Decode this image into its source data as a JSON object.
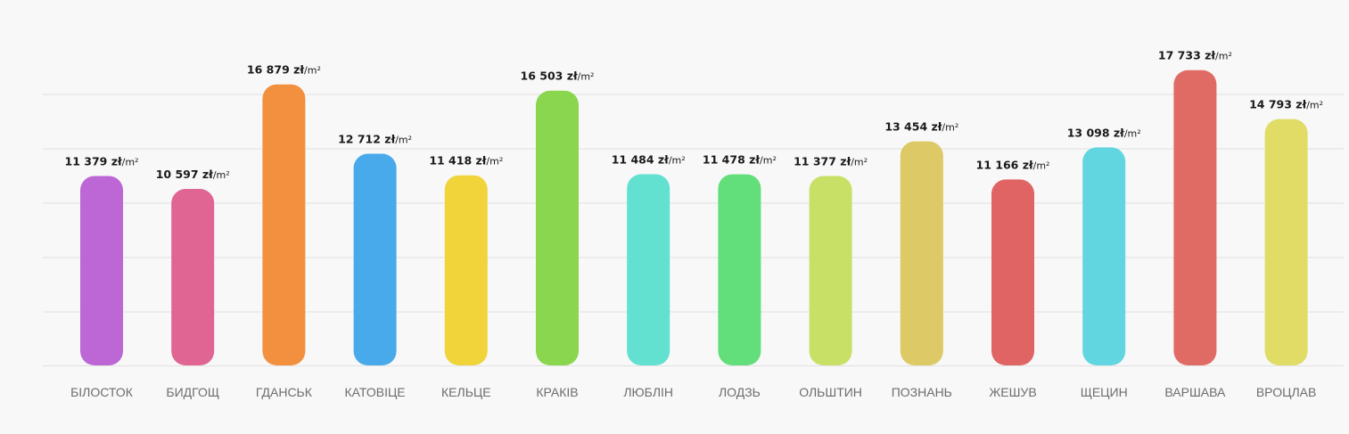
{
  "chart_data": {
    "type": "bar",
    "categories": [
      "БІЛОСТОК",
      "БИДГОЩ",
      "ГДАНСЬК",
      "КАТОВІЦЕ",
      "КЕЛЬЦЕ",
      "КРАКІВ",
      "ЛЮБЛІН",
      "ЛОДЗЬ",
      "ОЛЬШТИН",
      "ПОЗНАНЬ",
      "ЖЕШУВ",
      "ЩЕЦИН",
      "ВАРШАВА",
      "ВРОЦЛАВ"
    ],
    "values": [
      11379,
      10597,
      16879,
      12712,
      11418,
      16503,
      11484,
      11478,
      11377,
      13454,
      11166,
      13098,
      17733,
      14793
    ],
    "value_labels": [
      "11 379 zł",
      "10 597 zł",
      "16 879 zł",
      "12 712 zł",
      "11 418 zł",
      "16 503 zł",
      "11 484 zł",
      "11 478 zł",
      "11 377 zł",
      "13 454 zł",
      "11 166 zł",
      "13 098 zł",
      "17 733 zł",
      "14 793 zł"
    ],
    "unit": "/m²",
    "colors": [
      "#bd66d6",
      "#e06592",
      "#f2903f",
      "#48aaea",
      "#f0d43a",
      "#8ad64f",
      "#62e0d0",
      "#62de7a",
      "#c8e066",
      "#ddc965",
      "#e06464",
      "#62d6e0",
      "#e06b64",
      "#e0dc66"
    ],
    "ylim": [
      0,
      18000
    ],
    "grid": true,
    "title": "",
    "xlabel": "",
    "ylabel": ""
  }
}
